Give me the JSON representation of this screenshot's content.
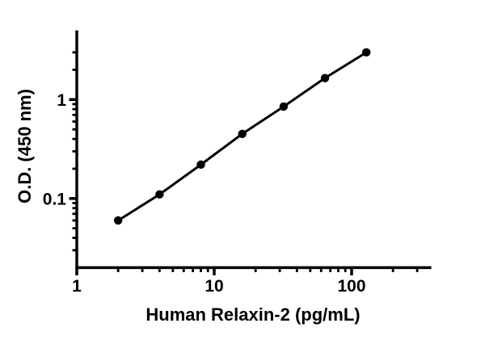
{
  "chart_data": {
    "type": "line",
    "title": "",
    "xlabel": "Human Relaxin-2 (pg/mL)",
    "ylabel": "O.D. (450 nm)",
    "xscale": "log",
    "yscale": "log",
    "xlim": [
      1,
      380
    ],
    "ylim": [
      0.02,
      5
    ],
    "grid": false,
    "legend": false,
    "axis_color": "#000000",
    "marker_color": "#000000",
    "line_color": "#000000",
    "background": "#ffffff",
    "series": [
      {
        "x": [
          2,
          4,
          8,
          16,
          32,
          64,
          128
        ],
        "y": [
          0.06,
          0.11,
          0.22,
          0.45,
          0.85,
          1.65,
          3.0
        ],
        "marker": "filled-circle"
      }
    ],
    "x_ticks": {
      "major": [
        1,
        10,
        100
      ],
      "major_labels": [
        "1",
        "10",
        "100"
      ],
      "minor": [
        2,
        3,
        4,
        5,
        6,
        7,
        8,
        9,
        20,
        30,
        40,
        50,
        60,
        70,
        80,
        90,
        200,
        300
      ]
    },
    "y_ticks": {
      "major": [
        0.1,
        1
      ],
      "major_labels": [
        "0.1",
        "1"
      ],
      "minor": [
        0.03,
        0.04,
        0.05,
        0.06,
        0.07,
        0.08,
        0.09,
        0.2,
        0.3,
        0.4,
        0.5,
        0.6,
        0.7,
        0.8,
        0.9,
        2,
        3
      ]
    }
  }
}
